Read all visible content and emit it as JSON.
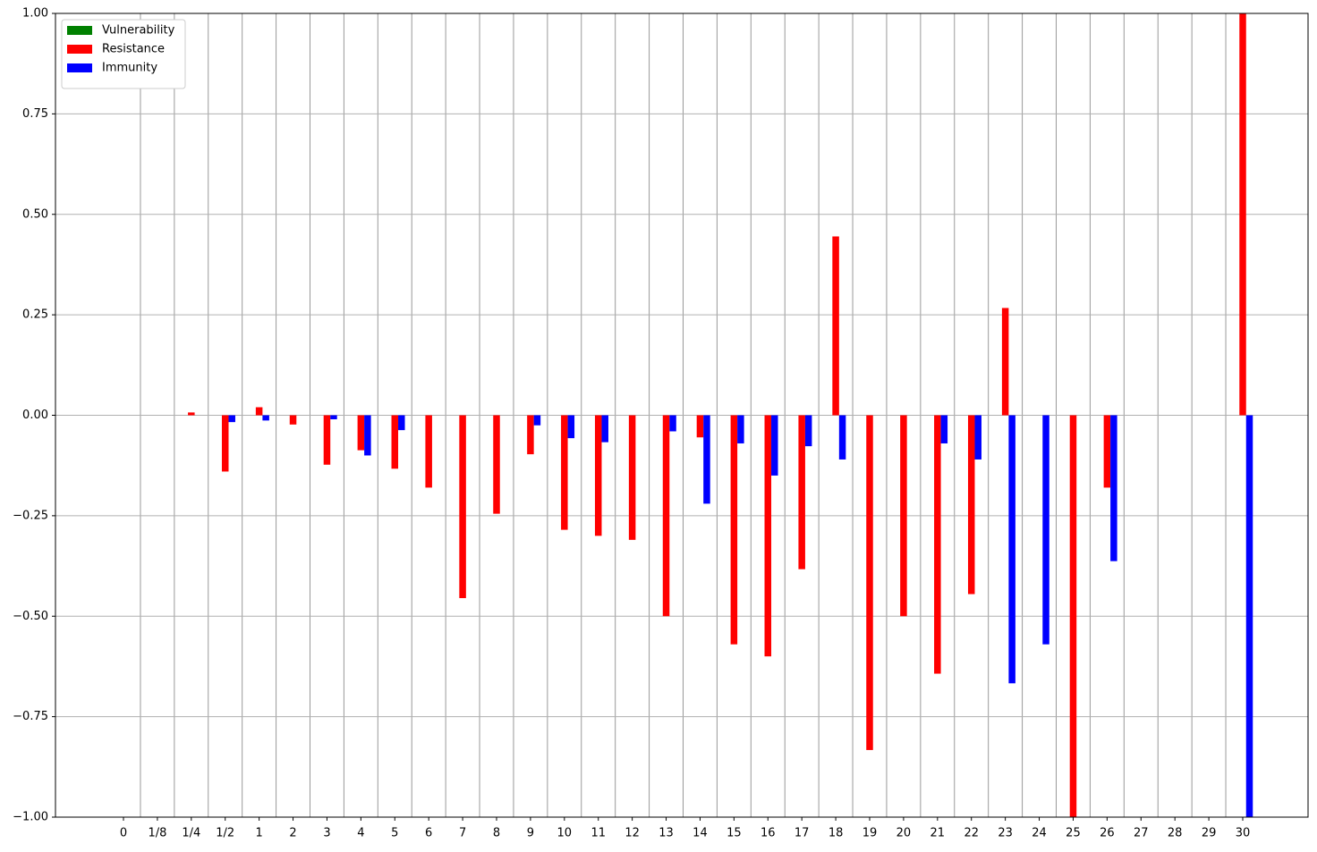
{
  "chart_data": {
    "type": "bar",
    "categories": [
      "0",
      "1/8",
      "1/4",
      "1/2",
      "1",
      "2",
      "3",
      "4",
      "5",
      "6",
      "7",
      "8",
      "9",
      "10",
      "11",
      "12",
      "13",
      "14",
      "15",
      "16",
      "17",
      "18",
      "19",
      "20",
      "21",
      "22",
      "23",
      "24",
      "25",
      "26",
      "27",
      "28",
      "29",
      "30"
    ],
    "series": [
      {
        "name": "Vulnerability",
        "color": "#008000",
        "values": [
          0,
          0,
          0,
          0,
          0,
          0,
          0,
          0,
          0,
          0,
          0,
          0,
          0,
          0,
          0,
          0,
          0,
          0,
          0,
          0,
          0,
          0,
          0,
          0,
          0,
          0,
          0,
          0,
          0,
          0,
          0,
          0,
          0,
          0
        ]
      },
      {
        "name": "Resistance",
        "color": "#ff0000",
        "values": [
          0,
          0,
          0.007,
          -0.14,
          0.02,
          -0.023,
          -0.123,
          -0.087,
          -0.133,
          -0.18,
          -0.455,
          -0.245,
          -0.097,
          -0.285,
          -0.3,
          -0.31,
          -0.5,
          -0.055,
          -0.57,
          -0.6,
          -0.383,
          0.445,
          -0.833,
          -0.5,
          -0.643,
          -0.445,
          0.267,
          0,
          -1.0,
          -0.18,
          0,
          0,
          0,
          1.0
        ]
      },
      {
        "name": "Immunity",
        "color": "#0000ff",
        "values": [
          0,
          0,
          0,
          -0.017,
          -0.013,
          0,
          -0.01,
          -0.1,
          -0.037,
          0,
          0,
          0,
          -0.025,
          -0.057,
          -0.067,
          0,
          -0.04,
          -0.22,
          -0.07,
          -0.15,
          -0.077,
          -0.11,
          0,
          0,
          -0.07,
          -0.11,
          -0.667,
          -0.57,
          0,
          -0.363,
          0,
          0,
          0,
          -1.0
        ]
      }
    ],
    "ylim": [
      -1.0,
      1.0
    ],
    "yticks": [
      {
        "value": -1.0,
        "label": "−1.00"
      },
      {
        "value": -0.75,
        "label": "−0.75"
      },
      {
        "value": -0.5,
        "label": "−0.50"
      },
      {
        "value": -0.25,
        "label": "−0.25"
      },
      {
        "value": 0,
        "label": "0.00"
      },
      {
        "value": 0.25,
        "label": "0.25"
      },
      {
        "value": 0.5,
        "label": "0.50"
      },
      {
        "value": 0.75,
        "label": "0.75"
      },
      {
        "value": 1.0,
        "label": "1.00"
      }
    ],
    "grid": true,
    "legend": "upper left"
  }
}
